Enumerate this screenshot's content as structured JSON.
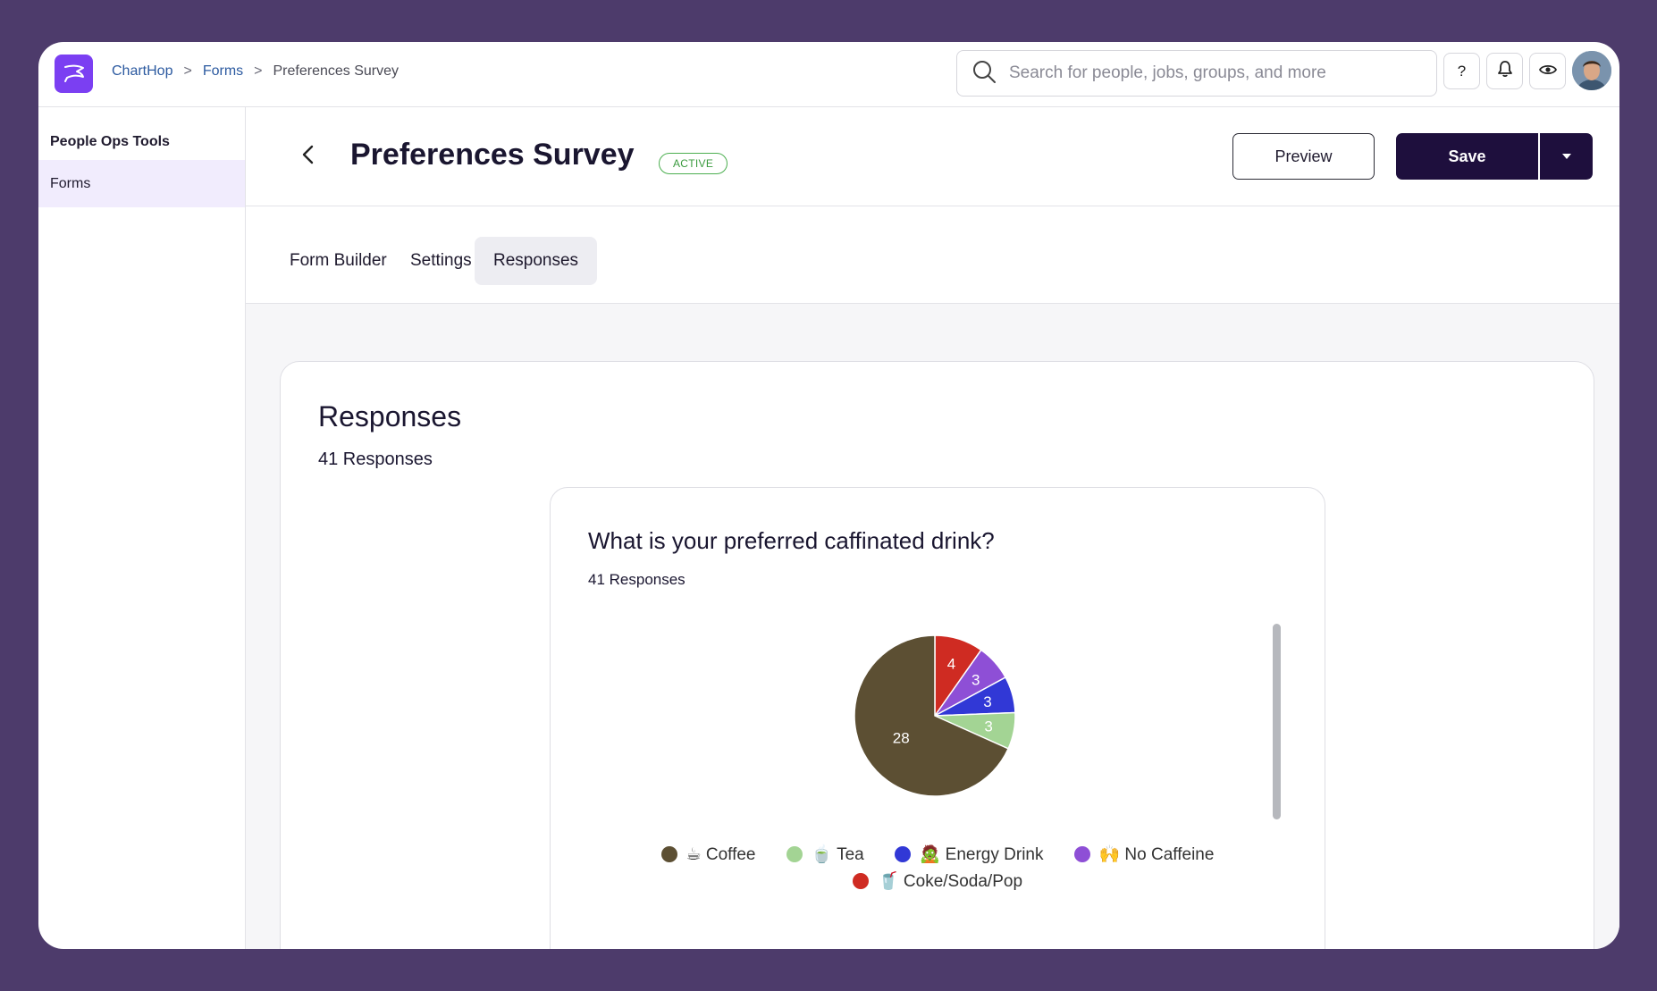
{
  "breadcrumb": {
    "root": "ChartHop",
    "section": "Forms",
    "current": "Preferences Survey",
    "sep": ">"
  },
  "search": {
    "placeholder": "Search for people, jobs, groups, and more"
  },
  "topbar": {
    "help_label": "?"
  },
  "sidebar": {
    "title": "People Ops Tools",
    "items": [
      {
        "label": "Forms",
        "active": true
      }
    ]
  },
  "header": {
    "title": "Preferences Survey",
    "status": "ACTIVE",
    "preview_label": "Preview",
    "save_label": "Save"
  },
  "tabs": [
    {
      "label": "Form Builder",
      "active": false
    },
    {
      "label": "Settings",
      "active": false
    },
    {
      "label": "Responses",
      "active": true
    }
  ],
  "responses": {
    "title": "Responses",
    "count_label": "41 Responses"
  },
  "question": {
    "title": "What is your preferred caffinated drink?",
    "count_label": "41 Responses"
  },
  "colors": {
    "accent": "#7b3ff2",
    "primary_button": "#1e0f3d",
    "active_badge": "#4caf50"
  },
  "chart_data": {
    "type": "pie",
    "title": "What is your preferred caffinated drink?",
    "slices": [
      {
        "label": "☕ Coffee",
        "value": 28,
        "color": "#5c4f33"
      },
      {
        "label": "🍵 Tea",
        "value": 3,
        "color": "#a3d494"
      },
      {
        "label": "🧟 Energy Drink",
        "value": 3,
        "color": "#3138d6"
      },
      {
        "label": "🙌 No Caffeine",
        "value": 3,
        "color": "#8e4fd6"
      },
      {
        "label": "🥤 Coke/Soda/Pop",
        "value": 4,
        "color": "#cf2b22"
      }
    ],
    "legend_placement": "bottom"
  }
}
